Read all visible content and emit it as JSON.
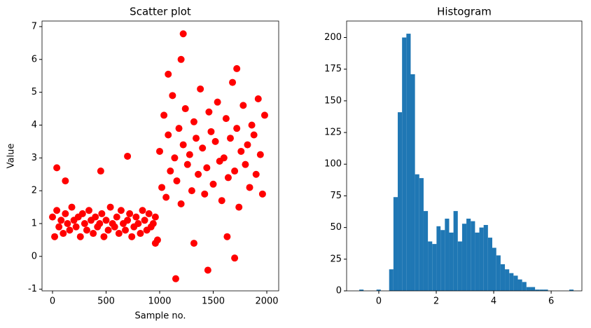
{
  "chart_data": [
    {
      "type": "scatter",
      "title": "Scatter plot",
      "xlabel": "Sample no.",
      "ylabel": "Value",
      "color": "#ff0000",
      "xlim": [
        -98,
        2111
      ],
      "ylim": [
        -1.05,
        7.17
      ],
      "xticks": [
        0,
        500,
        1000,
        1500,
        2000
      ],
      "yticks": [
        -1,
        0,
        1,
        2,
        3,
        4,
        5,
        6,
        7
      ],
      "x": [
        0,
        20,
        40,
        60,
        80,
        100,
        120,
        140,
        160,
        180,
        200,
        220,
        240,
        260,
        280,
        300,
        320,
        340,
        360,
        380,
        400,
        420,
        440,
        460,
        480,
        500,
        520,
        540,
        560,
        580,
        600,
        620,
        640,
        660,
        680,
        700,
        720,
        740,
        760,
        780,
        800,
        820,
        840,
        860,
        880,
        900,
        920,
        940,
        960,
        980,
        1000,
        1020,
        1040,
        1060,
        1080,
        1100,
        1120,
        1140,
        1160,
        1180,
        1200,
        1220,
        1240,
        1260,
        1280,
        1300,
        1320,
        1340,
        1360,
        1380,
        1400,
        1420,
        1440,
        1460,
        1480,
        1500,
        1520,
        1540,
        1560,
        1580,
        1600,
        1620,
        1640,
        1660,
        1680,
        1700,
        1720,
        1740,
        1760,
        1780,
        1800,
        1820,
        1840,
        1860,
        1880,
        1900,
        1920,
        1940,
        1960,
        1980,
        40,
        450,
        700,
        1150,
        1200,
        1220,
        1450,
        1700,
        1720,
        1080,
        120,
        1320,
        1630,
        960
      ],
      "y": [
        1.2,
        0.6,
        1.4,
        0.9,
        1.1,
        0.7,
        1.3,
        1.0,
        0.8,
        1.5,
        1.1,
        0.9,
        1.2,
        0.6,
        1.3,
        1.0,
        0.8,
        1.4,
        1.1,
        0.7,
        1.2,
        0.9,
        1.0,
        1.3,
        0.6,
        1.1,
        0.8,
        1.5,
        1.0,
        0.9,
        1.2,
        0.7,
        1.4,
        1.0,
        0.8,
        1.1,
        1.3,
        0.6,
        0.9,
        1.2,
        1.0,
        0.7,
        1.4,
        1.1,
        0.8,
        1.3,
        0.9,
        1.0,
        1.2,
        0.5,
        3.2,
        2.1,
        4.3,
        1.8,
        3.7,
        2.6,
        4.9,
        3.0,
        2.3,
        3.9,
        1.6,
        3.4,
        4.5,
        2.8,
        3.1,
        2.0,
        4.1,
        3.6,
        2.5,
        5.1,
        3.3,
        1.9,
        2.7,
        4.4,
        3.8,
        2.2,
        3.5,
        4.7,
        2.9,
        1.7,
        3.0,
        4.2,
        2.4,
        3.6,
        5.3,
        2.6,
        3.9,
        1.5,
        3.2,
        4.6,
        2.8,
        3.4,
        2.1,
        4.0,
        3.7,
        2.5,
        4.8,
        3.1,
        1.9,
        4.3,
        2.7,
        2.6,
        3.05,
        -0.68,
        6.0,
        6.78,
        -0.42,
        -0.05,
        5.72,
        5.55,
        2.3,
        0.4,
        0.6,
        0.4
      ]
    },
    {
      "type": "histogram",
      "title": "Histogram",
      "color": "#1f77b4",
      "xlim": [
        -1.12,
        7.07
      ],
      "ylim": [
        0,
        213
      ],
      "xticks": [
        0,
        2,
        4,
        6
      ],
      "yticks": [
        0,
        25,
        50,
        75,
        100,
        125,
        150,
        175,
        200
      ],
      "bins": [
        -0.68,
        -0.53,
        -0.38,
        -0.23,
        -0.08,
        0.07,
        0.22,
        0.36,
        0.51,
        0.66,
        0.81,
        0.96,
        1.11,
        1.26,
        1.41,
        1.56,
        1.71,
        1.86,
        2.01,
        2.15,
        2.3,
        2.45,
        2.6,
        2.75,
        2.9,
        3.05,
        3.2,
        3.35,
        3.5,
        3.65,
        3.8,
        3.95,
        4.09,
        4.24,
        4.39,
        4.54,
        4.69,
        4.84,
        4.99,
        5.14,
        5.29,
        5.44,
        5.59,
        5.74,
        5.89,
        6.03,
        6.18,
        6.33,
        6.48,
        6.63,
        6.78
      ],
      "counts": [
        1,
        0,
        0,
        0,
        1,
        0,
        0,
        17,
        74,
        141,
        200,
        203,
        171,
        92,
        89,
        63,
        39,
        37,
        51,
        48,
        57,
        46,
        63,
        39,
        53,
        57,
        55,
        46,
        50,
        52,
        42,
        34,
        28,
        21,
        17,
        14,
        12,
        9,
        7,
        3,
        3,
        1,
        1,
        1,
        0,
        0,
        0,
        0,
        0,
        1
      ]
    }
  ]
}
